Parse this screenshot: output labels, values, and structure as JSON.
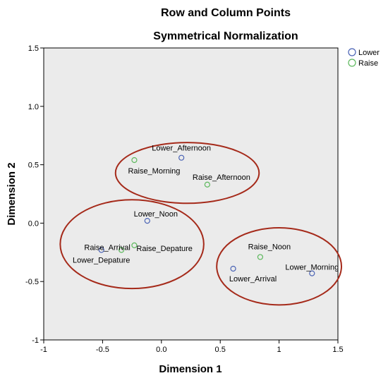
{
  "chart_data": {
    "type": "scatter",
    "title": "Row and Column Points",
    "subtitle": "Symmetrical Normalization",
    "xlabel": "Dimension 1",
    "ylabel": "Dimension 2",
    "xlim": [
      -1,
      1.5
    ],
    "ylim": [
      -1,
      1.5
    ],
    "xticks": [
      -1,
      -0.5,
      0.0,
      0.5,
      1,
      1.5
    ],
    "yticks": [
      -1,
      -0.5,
      0.0,
      0.5,
      1.0,
      1.5
    ],
    "xtick_labels": [
      "-1",
      "-0.5",
      "0.0",
      "0.5",
      "1",
      "1.5"
    ],
    "ytick_labels": [
      "-1",
      "-0.5",
      "0.0",
      "0.5",
      "1.0",
      "1.5"
    ],
    "legend_position": "top-right",
    "grid": false,
    "series": [
      {
        "name": "Lower",
        "color": "#4a63b5",
        "points": [
          {
            "label": "Lower_Afternoon",
            "x": 0.17,
            "y": 0.56
          },
          {
            "label": "Lower_Noon",
            "x": -0.12,
            "y": 0.02
          },
          {
            "label": "Lower_Depature",
            "x": -0.51,
            "y": -0.23
          },
          {
            "label": "Lower_Arrival",
            "x": 0.61,
            "y": -0.39
          },
          {
            "label": "Lower_Morning",
            "x": 1.28,
            "y": -0.43
          }
        ]
      },
      {
        "name": "Raise",
        "color": "#5cb85c",
        "points": [
          {
            "label": "Raise_Morning",
            "x": -0.23,
            "y": 0.54
          },
          {
            "label": "Raise_Afternoon",
            "x": 0.39,
            "y": 0.33
          },
          {
            "label": "Raise_Arrival",
            "x": -0.34,
            "y": -0.23
          },
          {
            "label": "Raise_Depature",
            "x": -0.23,
            "y": -0.19
          },
          {
            "label": "Raise_Noon",
            "x": 0.84,
            "y": -0.29
          }
        ]
      }
    ],
    "annotations": [
      {
        "shape": "ellipse",
        "cx": 0.22,
        "cy": 0.43,
        "rx": 0.61,
        "ry": 0.26
      },
      {
        "shape": "ellipse",
        "cx": -0.25,
        "cy": -0.18,
        "rx": 0.61,
        "ry": 0.38
      },
      {
        "shape": "ellipse",
        "cx": 1.0,
        "cy": -0.37,
        "rx": 0.53,
        "ry": 0.33
      }
    ],
    "annotation_color": "#a52a1a",
    "plot_background": "#ebebeb"
  }
}
